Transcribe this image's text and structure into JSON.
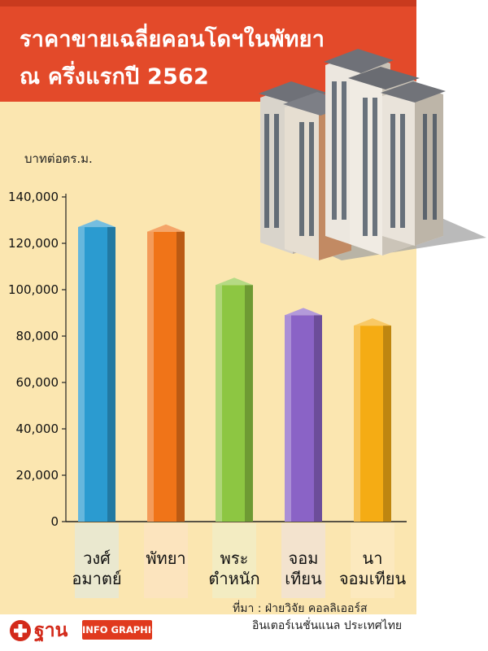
{
  "title_lines": [
    "ราคาขายเฉลี่ยคอนโดฯในพัทยา",
    "ณ ครึ่งแรกปี 2562"
  ],
  "footer": {
    "brand": "ฐาน",
    "tag": "INFO GRAPHIC"
  },
  "source": {
    "line1": "ที่มา : ฝ่ายวิจัย คอลลิเออร์ส",
    "line2": "อินเตอร์เนชั่นแนล ประเทศไทย"
  },
  "colors": {
    "title_banner": "#e34a2a",
    "panel": "#fbe6b0",
    "bars": [
      "#2b9bd0",
      "#f07418",
      "#8dc642",
      "#8a63c6",
      "#f5ac14"
    ]
  },
  "chart_data": {
    "type": "bar",
    "title": "ราคาขายเฉลี่ยคอนโดฯในพัทยา ณ ครึ่งแรกปี 2562",
    "ylabel": "บาทต่อตร.ม.",
    "xlabel": "",
    "ylim": [
      0,
      140000
    ],
    "yticks": [
      0,
      20000,
      40000,
      60000,
      80000,
      100000,
      120000,
      140000
    ],
    "ytick_labels": [
      "0",
      "20,000",
      "40,000",
      "60,000",
      "80,000",
      "100,000",
      "120,000",
      "140,000"
    ],
    "categories": [
      [
        "วงศ์",
        "อมาตย์"
      ],
      [
        "พัทยา"
      ],
      [
        "พระ",
        "ตำหนัก"
      ],
      [
        "จอม",
        "เทียน"
      ],
      [
        "นา",
        "จอมเทียน"
      ]
    ],
    "values": [
      127000,
      125000,
      102000,
      89000,
      84500
    ],
    "grid": false,
    "legend": "none"
  }
}
